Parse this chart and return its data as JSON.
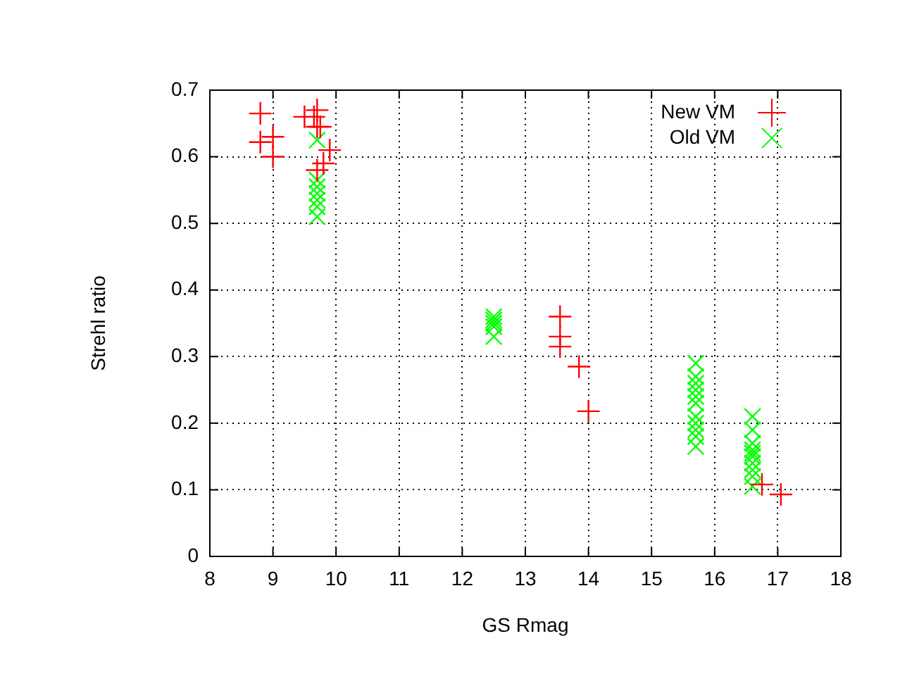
{
  "chart_data": {
    "type": "scatter",
    "xlabel": "GS Rmag",
    "ylabel": "Strehl ratio",
    "xlim": [
      8,
      18
    ],
    "xticks": [
      8,
      9,
      10,
      11,
      12,
      13,
      14,
      15,
      16,
      17,
      18
    ],
    "ylim": [
      0,
      0.7
    ],
    "yticks": [
      0,
      0.1,
      0.2,
      0.3,
      0.4,
      0.5,
      0.6,
      0.7
    ],
    "grid": true,
    "legend": "top right",
    "line_style": "dotted",
    "series": [
      {
        "name": "New VM",
        "color": "#ff0000",
        "marker": "cross",
        "x": [
          8.8,
          8.8,
          9.0,
          9.0,
          9.5,
          9.65,
          9.7,
          9.75,
          9.7,
          9.8,
          9.9,
          9.7,
          13.55,
          13.55,
          13.55,
          13.85,
          14.0,
          16.75,
          17.05
        ],
        "values": [
          0.665,
          0.622,
          0.63,
          0.6,
          0.66,
          0.66,
          0.67,
          0.645,
          0.645,
          0.59,
          0.61,
          0.58,
          0.36,
          0.33,
          0.315,
          0.285,
          0.218,
          0.108,
          0.093
        ]
      },
      {
        "name": "Old VM",
        "color": "#00ff00",
        "marker": "x",
        "x": [
          9.7,
          9.7,
          9.7,
          9.7,
          9.7,
          9.7,
          9.7,
          12.5,
          12.5,
          12.5,
          12.5,
          12.5,
          15.7,
          15.7,
          15.7,
          15.7,
          15.7,
          15.7,
          15.7,
          15.7,
          15.7,
          15.7,
          15.7,
          16.6,
          16.6,
          16.6,
          16.6,
          16.6,
          16.6,
          16.6,
          16.6,
          16.6,
          16.6
        ],
        "values": [
          0.625,
          0.565,
          0.555,
          0.545,
          0.535,
          0.525,
          0.51,
          0.36,
          0.355,
          0.35,
          0.345,
          0.33,
          0.29,
          0.27,
          0.26,
          0.25,
          0.24,
          0.23,
          0.21,
          0.2,
          0.19,
          0.18,
          0.165,
          0.21,
          0.19,
          0.17,
          0.16,
          0.155,
          0.15,
          0.14,
          0.13,
          0.12,
          0.105
        ]
      }
    ]
  }
}
